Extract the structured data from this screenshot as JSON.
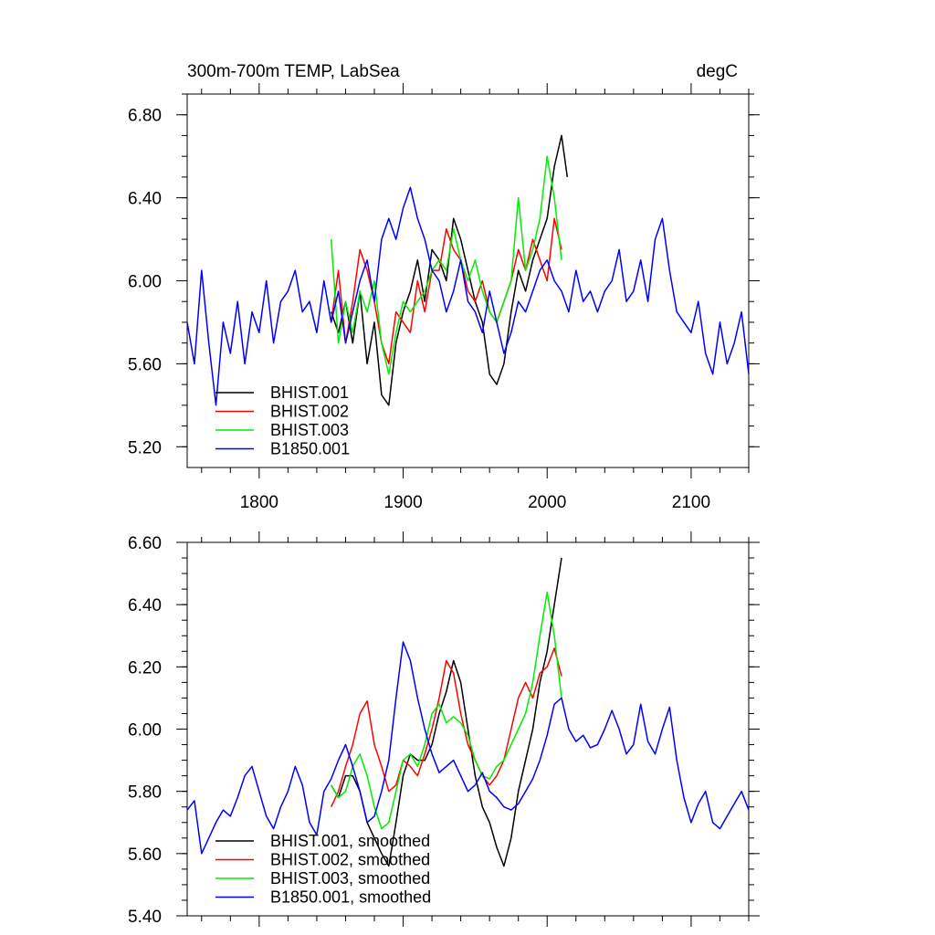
{
  "chart_data": [
    {
      "type": "line",
      "title": "300m-700m TEMP, LabSea",
      "units": "degC",
      "xlim": [
        1750,
        2140
      ],
      "ylim": [
        5.1,
        6.9
      ],
      "x_ticks": [
        1800,
        1900,
        2000,
        2100
      ],
      "x_tick_labels": [
        "1800",
        "1900",
        "2000",
        "2100"
      ],
      "y_ticks": [
        5.2,
        5.6,
        6.0,
        6.4,
        6.8
      ],
      "y_tick_labels": [
        "5.20",
        "5.60",
        "6.00",
        "6.40",
        "6.80"
      ],
      "grid": false,
      "legend_position": "bottom-left",
      "series": [
        {
          "name": "BHIST.001",
          "color": "#000000",
          "x": [
            1850,
            1855,
            1860,
            1865,
            1870,
            1875,
            1880,
            1885,
            1890,
            1895,
            1900,
            1905,
            1910,
            1915,
            1920,
            1925,
            1930,
            1935,
            1940,
            1945,
            1950,
            1955,
            1960,
            1965,
            1970,
            1975,
            1980,
            1985,
            1990,
            1995,
            2000,
            2005,
            2010,
            2014
          ],
          "values": [
            5.85,
            5.75,
            5.9,
            5.7,
            5.95,
            5.6,
            5.8,
            5.45,
            5.4,
            5.7,
            5.85,
            5.95,
            6.1,
            5.9,
            6.15,
            6.1,
            6.0,
            6.3,
            6.2,
            6.05,
            5.9,
            5.8,
            5.55,
            5.5,
            5.6,
            5.85,
            6.05,
            5.95,
            6.1,
            6.2,
            6.3,
            6.55,
            6.7,
            6.5
          ]
        },
        {
          "name": "BHIST.002",
          "color": "#ff0000",
          "x": [
            1850,
            1855,
            1860,
            1865,
            1870,
            1875,
            1880,
            1885,
            1890,
            1895,
            1900,
            1905,
            1910,
            1915,
            1920,
            1925,
            1930,
            1935,
            1940,
            1945,
            1950,
            1955,
            1960,
            1965,
            1970,
            1975,
            1980,
            1985,
            1990,
            1995,
            2000,
            2005,
            2010
          ],
          "values": [
            5.8,
            6.05,
            5.7,
            5.9,
            6.15,
            6.05,
            5.9,
            5.7,
            5.6,
            5.85,
            5.8,
            5.75,
            6.0,
            5.85,
            6.05,
            6.05,
            6.25,
            6.15,
            6.1,
            5.95,
            5.9,
            6.0,
            5.85,
            5.8,
            5.9,
            6.0,
            6.15,
            6.05,
            6.2,
            6.1,
            6.0,
            6.3,
            6.15
          ]
        },
        {
          "name": "BHIST.003",
          "color": "#00ee00",
          "x": [
            1850,
            1855,
            1860,
            1865,
            1870,
            1875,
            1880,
            1885,
            1890,
            1895,
            1900,
            1905,
            1910,
            1915,
            1920,
            1925,
            1930,
            1935,
            1940,
            1945,
            1950,
            1955,
            1960,
            1965,
            1970,
            1975,
            1980,
            1985,
            1990,
            1995,
            2000,
            2005,
            2010
          ],
          "values": [
            6.2,
            5.7,
            5.9,
            5.75,
            5.95,
            5.85,
            6.0,
            5.7,
            5.55,
            5.75,
            5.9,
            5.85,
            5.9,
            5.95,
            6.05,
            6.1,
            6.05,
            6.25,
            6.1,
            6.0,
            6.1,
            5.95,
            5.85,
            5.8,
            5.9,
            6.0,
            6.4,
            6.05,
            6.15,
            6.3,
            6.6,
            6.4,
            6.1
          ]
        },
        {
          "name": "B1850.001",
          "color": "#0000ff",
          "x": [
            1750,
            1755,
            1760,
            1765,
            1770,
            1775,
            1780,
            1785,
            1790,
            1795,
            1800,
            1805,
            1810,
            1815,
            1820,
            1825,
            1830,
            1835,
            1840,
            1845,
            1850,
            1855,
            1860,
            1865,
            1870,
            1875,
            1880,
            1885,
            1890,
            1895,
            1900,
            1905,
            1910,
            1915,
            1920,
            1925,
            1930,
            1935,
            1940,
            1945,
            1950,
            1955,
            1960,
            1965,
            1970,
            1975,
            1980,
            1985,
            1990,
            1995,
            2000,
            2005,
            2010,
            2015,
            2020,
            2025,
            2030,
            2035,
            2040,
            2045,
            2050,
            2055,
            2060,
            2065,
            2070,
            2075,
            2080,
            2085,
            2090,
            2095,
            2100,
            2105,
            2110,
            2115,
            2120,
            2125,
            2130,
            2135,
            2140
          ],
          "values": [
            5.8,
            5.6,
            6.05,
            5.7,
            5.4,
            5.8,
            5.65,
            5.9,
            5.6,
            5.85,
            5.75,
            6.0,
            5.7,
            5.9,
            5.95,
            6.05,
            5.85,
            5.9,
            5.75,
            6.0,
            5.8,
            5.95,
            5.7,
            5.85,
            6.0,
            6.1,
            5.9,
            6.2,
            6.3,
            6.2,
            6.35,
            6.45,
            6.3,
            6.2,
            6.05,
            6.0,
            5.85,
            5.95,
            6.1,
            5.9,
            5.85,
            5.75,
            5.95,
            5.8,
            5.65,
            5.75,
            5.9,
            5.85,
            5.95,
            6.05,
            6.1,
            6.0,
            5.95,
            5.85,
            6.05,
            5.9,
            5.95,
            5.85,
            5.95,
            6.0,
            6.15,
            5.9,
            5.95,
            6.1,
            5.9,
            6.2,
            6.3,
            6.05,
            5.85,
            5.8,
            5.75,
            5.9,
            5.65,
            5.55,
            5.8,
            5.6,
            5.7,
            5.85,
            5.55
          ]
        }
      ]
    },
    {
      "type": "line",
      "xlim": [
        1750,
        2140
      ],
      "ylim": [
        5.4,
        6.6
      ],
      "x_ticks": [
        1800,
        1900,
        2000,
        2100
      ],
      "y_ticks": [
        5.4,
        5.6,
        5.8,
        6.0,
        6.2,
        6.4,
        6.6
      ],
      "y_tick_labels": [
        "5.40",
        "5.60",
        "5.80",
        "6.00",
        "6.20",
        "6.40",
        "6.60"
      ],
      "grid": false,
      "legend_position": "bottom-left",
      "series": [
        {
          "name": "BHIST.001, smoothed",
          "color": "#000000",
          "x": [
            1850,
            1855,
            1860,
            1865,
            1870,
            1875,
            1880,
            1885,
            1890,
            1895,
            1900,
            1905,
            1910,
            1915,
            1920,
            1925,
            1930,
            1935,
            1940,
            1945,
            1950,
            1955,
            1960,
            1965,
            1970,
            1975,
            1980,
            1985,
            1990,
            1995,
            2000,
            2005,
            2010
          ],
          "values": [
            5.82,
            5.78,
            5.85,
            5.85,
            5.8,
            5.7,
            5.65,
            5.6,
            5.56,
            5.7,
            5.85,
            5.92,
            5.9,
            5.9,
            5.95,
            6.05,
            6.12,
            6.22,
            6.15,
            6.0,
            5.85,
            5.75,
            5.7,
            5.62,
            5.56,
            5.65,
            5.8,
            5.9,
            6.0,
            6.15,
            6.25,
            6.4,
            6.55
          ]
        },
        {
          "name": "BHIST.002, smoothed",
          "color": "#ff0000",
          "x": [
            1850,
            1855,
            1860,
            1865,
            1870,
            1875,
            1880,
            1885,
            1890,
            1895,
            1900,
            1905,
            1910,
            1915,
            1920,
            1925,
            1930,
            1935,
            1940,
            1945,
            1950,
            1955,
            1960,
            1965,
            1970,
            1975,
            1980,
            1985,
            1990,
            1995,
            2000,
            2005,
            2010
          ],
          "values": [
            5.75,
            5.8,
            5.88,
            5.95,
            6.05,
            6.09,
            5.95,
            5.88,
            5.8,
            5.82,
            5.9,
            5.88,
            5.85,
            5.92,
            6.0,
            6.1,
            6.22,
            6.18,
            6.05,
            5.95,
            5.9,
            5.85,
            5.82,
            5.85,
            5.9,
            6.0,
            6.1,
            6.15,
            6.1,
            6.18,
            6.2,
            6.26,
            6.17
          ]
        },
        {
          "name": "BHIST.003, smoothed",
          "color": "#00ee00",
          "x": [
            1850,
            1855,
            1860,
            1865,
            1870,
            1875,
            1880,
            1885,
            1890,
            1895,
            1900,
            1905,
            1910,
            1915,
            1920,
            1925,
            1930,
            1935,
            1940,
            1945,
            1950,
            1955,
            1960,
            1965,
            1970,
            1975,
            1980,
            1985,
            1990,
            1995,
            2000,
            2005,
            2010
          ],
          "values": [
            5.82,
            5.78,
            5.8,
            5.88,
            5.92,
            5.85,
            5.75,
            5.68,
            5.7,
            5.8,
            5.9,
            5.92,
            5.88,
            5.95,
            6.05,
            6.08,
            6.02,
            6.04,
            6.02,
            5.98,
            5.9,
            5.85,
            5.84,
            5.88,
            5.9,
            5.95,
            6.0,
            6.05,
            6.15,
            6.3,
            6.44,
            6.3,
            6.1
          ]
        },
        {
          "name": "B1850.001, smoothed",
          "color": "#0000ff",
          "x": [
            1750,
            1755,
            1760,
            1765,
            1770,
            1775,
            1780,
            1785,
            1790,
            1795,
            1800,
            1805,
            1810,
            1815,
            1820,
            1825,
            1830,
            1835,
            1840,
            1845,
            1850,
            1855,
            1860,
            1865,
            1870,
            1875,
            1880,
            1885,
            1890,
            1895,
            1900,
            1905,
            1910,
            1915,
            1920,
            1925,
            1930,
            1935,
            1940,
            1945,
            1950,
            1955,
            1960,
            1965,
            1970,
            1975,
            1980,
            1985,
            1990,
            1995,
            2000,
            2005,
            2010,
            2015,
            2020,
            2025,
            2030,
            2035,
            2040,
            2045,
            2050,
            2055,
            2060,
            2065,
            2070,
            2075,
            2080,
            2085,
            2090,
            2095,
            2100,
            2105,
            2110,
            2115,
            2120,
            2125,
            2130,
            2135,
            2140
          ],
          "values": [
            5.74,
            5.77,
            5.6,
            5.65,
            5.7,
            5.74,
            5.72,
            5.78,
            5.85,
            5.88,
            5.8,
            5.72,
            5.68,
            5.75,
            5.8,
            5.88,
            5.82,
            5.7,
            5.66,
            5.8,
            5.84,
            5.9,
            5.95,
            5.88,
            5.8,
            5.7,
            5.72,
            5.8,
            5.9,
            6.1,
            6.28,
            6.22,
            6.1,
            6.0,
            5.92,
            5.86,
            5.88,
            5.9,
            5.85,
            5.8,
            5.82,
            5.86,
            5.8,
            5.78,
            5.75,
            5.74,
            5.76,
            5.8,
            5.84,
            5.9,
            5.98,
            6.08,
            6.1,
            6.0,
            5.96,
            5.98,
            5.94,
            5.95,
            6.0,
            6.06,
            6.0,
            5.92,
            5.95,
            6.08,
            5.96,
            5.92,
            6.0,
            6.07,
            5.9,
            5.78,
            5.7,
            5.76,
            5.8,
            5.7,
            5.68,
            5.72,
            5.76,
            5.8,
            5.74
          ]
        }
      ]
    }
  ]
}
